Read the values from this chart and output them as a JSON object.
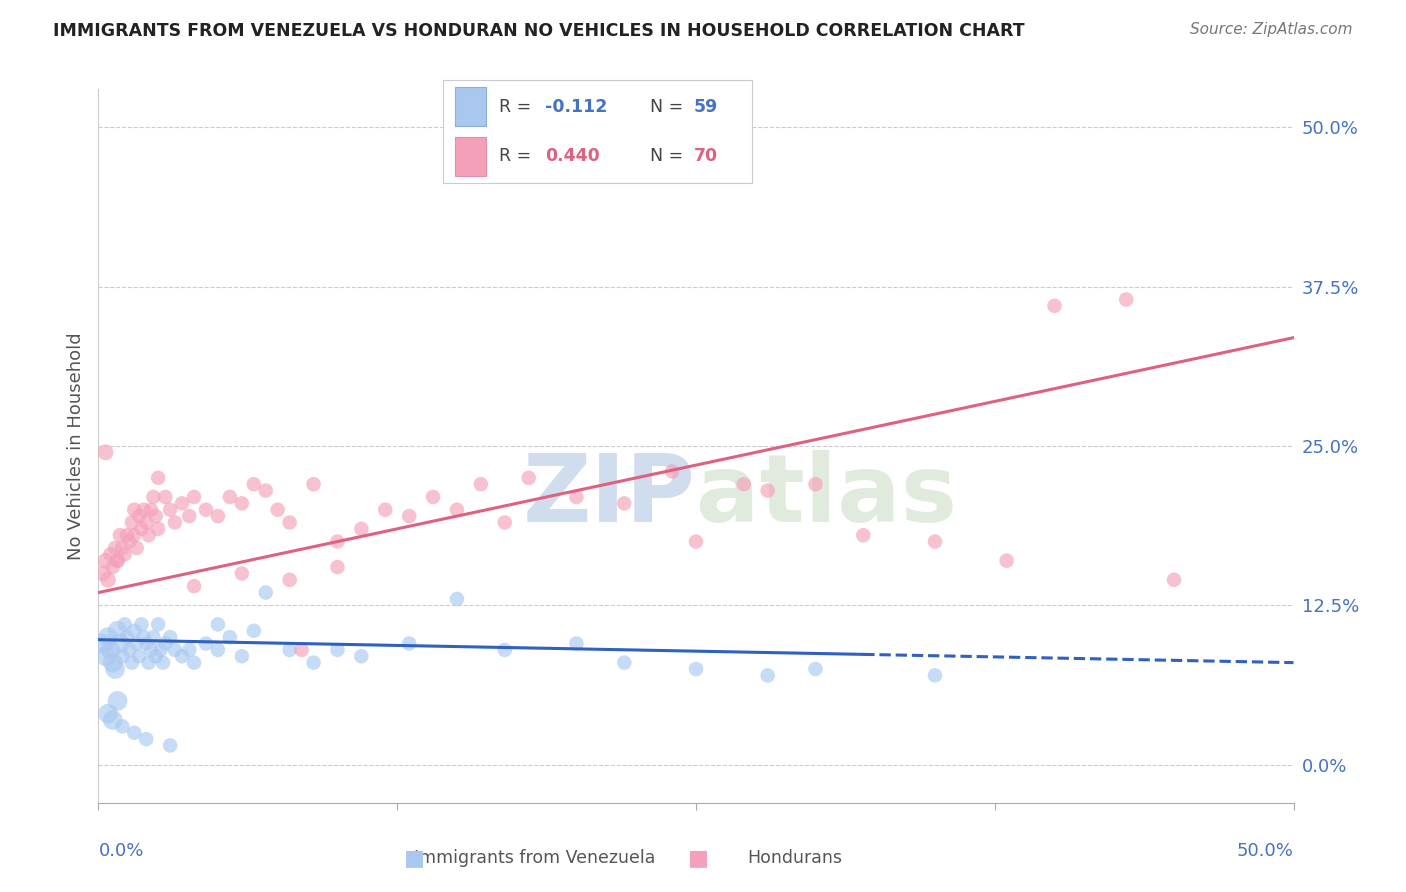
{
  "title": "IMMIGRANTS FROM VENEZUELA VS HONDURAN NO VEHICLES IN HOUSEHOLD CORRELATION CHART",
  "source": "Source: ZipAtlas.com",
  "ylabel": "No Vehicles in Household",
  "ytick_values": [
    0.0,
    12.5,
    25.0,
    37.5,
    50.0
  ],
  "xlim": [
    0.0,
    50.0
  ],
  "ylim": [
    -3.0,
    53.0
  ],
  "legend_label1": "Immigrants from Venezuela",
  "legend_label2": "Hondurans",
  "color_blue": "#a8c8f0",
  "color_pink": "#f4a0b8",
  "line_blue": "#3060c0",
  "line_pink": "#e06080",
  "watermark_zip": "ZIP",
  "watermark_atlas": "atlas",
  "background_color": "#ffffff",
  "blue_x": [
    0.2,
    0.3,
    0.4,
    0.5,
    0.6,
    0.7,
    0.8,
    0.9,
    1.0,
    1.1,
    1.2,
    1.3,
    1.4,
    1.5,
    1.6,
    1.7,
    1.8,
    1.9,
    2.0,
    2.1,
    2.2,
    2.3,
    2.4,
    2.5,
    2.6,
    2.7,
    2.8,
    3.0,
    3.2,
    3.5,
    3.8,
    4.0,
    4.5,
    5.0,
    5.5,
    6.0,
    6.5,
    7.0,
    8.0,
    9.0,
    10.0,
    11.0,
    13.0,
    15.0,
    17.0,
    20.0,
    22.0,
    25.0,
    28.0,
    30.0,
    35.0,
    0.4,
    0.6,
    0.8,
    1.0,
    1.5,
    2.0,
    3.0,
    5.0
  ],
  "blue_y": [
    9.5,
    8.5,
    10.0,
    9.0,
    8.0,
    7.5,
    10.5,
    9.5,
    8.5,
    11.0,
    10.0,
    9.0,
    8.0,
    10.5,
    9.5,
    8.5,
    11.0,
    10.0,
    9.5,
    8.0,
    9.0,
    10.0,
    8.5,
    11.0,
    9.0,
    8.0,
    9.5,
    10.0,
    9.0,
    8.5,
    9.0,
    8.0,
    9.5,
    9.0,
    10.0,
    8.5,
    10.5,
    13.5,
    9.0,
    8.0,
    9.0,
    8.5,
    9.5,
    13.0,
    9.0,
    9.5,
    8.0,
    7.5,
    7.0,
    7.5,
    7.0,
    4.0,
    3.5,
    5.0,
    3.0,
    2.5,
    2.0,
    1.5,
    11.0
  ],
  "pink_x": [
    0.2,
    0.3,
    0.4,
    0.5,
    0.6,
    0.7,
    0.8,
    0.9,
    1.0,
    1.1,
    1.2,
    1.3,
    1.4,
    1.5,
    1.6,
    1.7,
    1.8,
    1.9,
    2.0,
    2.1,
    2.2,
    2.3,
    2.4,
    2.5,
    2.8,
    3.0,
    3.2,
    3.5,
    3.8,
    4.0,
    4.5,
    5.0,
    5.5,
    6.0,
    6.5,
    7.0,
    7.5,
    8.0,
    8.5,
    9.0,
    10.0,
    11.0,
    12.0,
    13.0,
    14.0,
    15.0,
    16.0,
    17.0,
    18.0,
    20.0,
    22.0,
    24.0,
    25.0,
    27.0,
    28.0,
    30.0,
    32.0,
    35.0,
    38.0,
    40.0,
    43.0,
    45.0,
    0.3,
    0.8,
    1.5,
    2.5,
    4.0,
    6.0,
    8.0,
    10.0
  ],
  "pink_y": [
    15.0,
    16.0,
    14.5,
    16.5,
    15.5,
    17.0,
    16.0,
    18.0,
    17.0,
    16.5,
    18.0,
    17.5,
    19.0,
    18.0,
    17.0,
    19.5,
    18.5,
    20.0,
    19.0,
    18.0,
    20.0,
    21.0,
    19.5,
    18.5,
    21.0,
    20.0,
    19.0,
    20.5,
    19.5,
    21.0,
    20.0,
    19.5,
    21.0,
    20.5,
    22.0,
    21.5,
    20.0,
    19.0,
    9.0,
    22.0,
    17.5,
    18.5,
    20.0,
    19.5,
    21.0,
    20.0,
    22.0,
    19.0,
    22.5,
    21.0,
    20.5,
    23.0,
    17.5,
    22.0,
    21.5,
    22.0,
    18.0,
    17.5,
    16.0,
    36.0,
    36.5,
    14.5,
    24.5,
    16.0,
    20.0,
    22.5,
    14.0,
    15.0,
    14.5,
    15.5
  ],
  "blue_line_x0": 0.0,
  "blue_line_x1": 50.0,
  "blue_line_y0": 9.8,
  "blue_line_y1": 8.0,
  "blue_line_solid_end": 32.0,
  "pink_line_x0": 0.0,
  "pink_line_x1": 50.0,
  "pink_line_y0": 13.5,
  "pink_line_y1": 33.5
}
